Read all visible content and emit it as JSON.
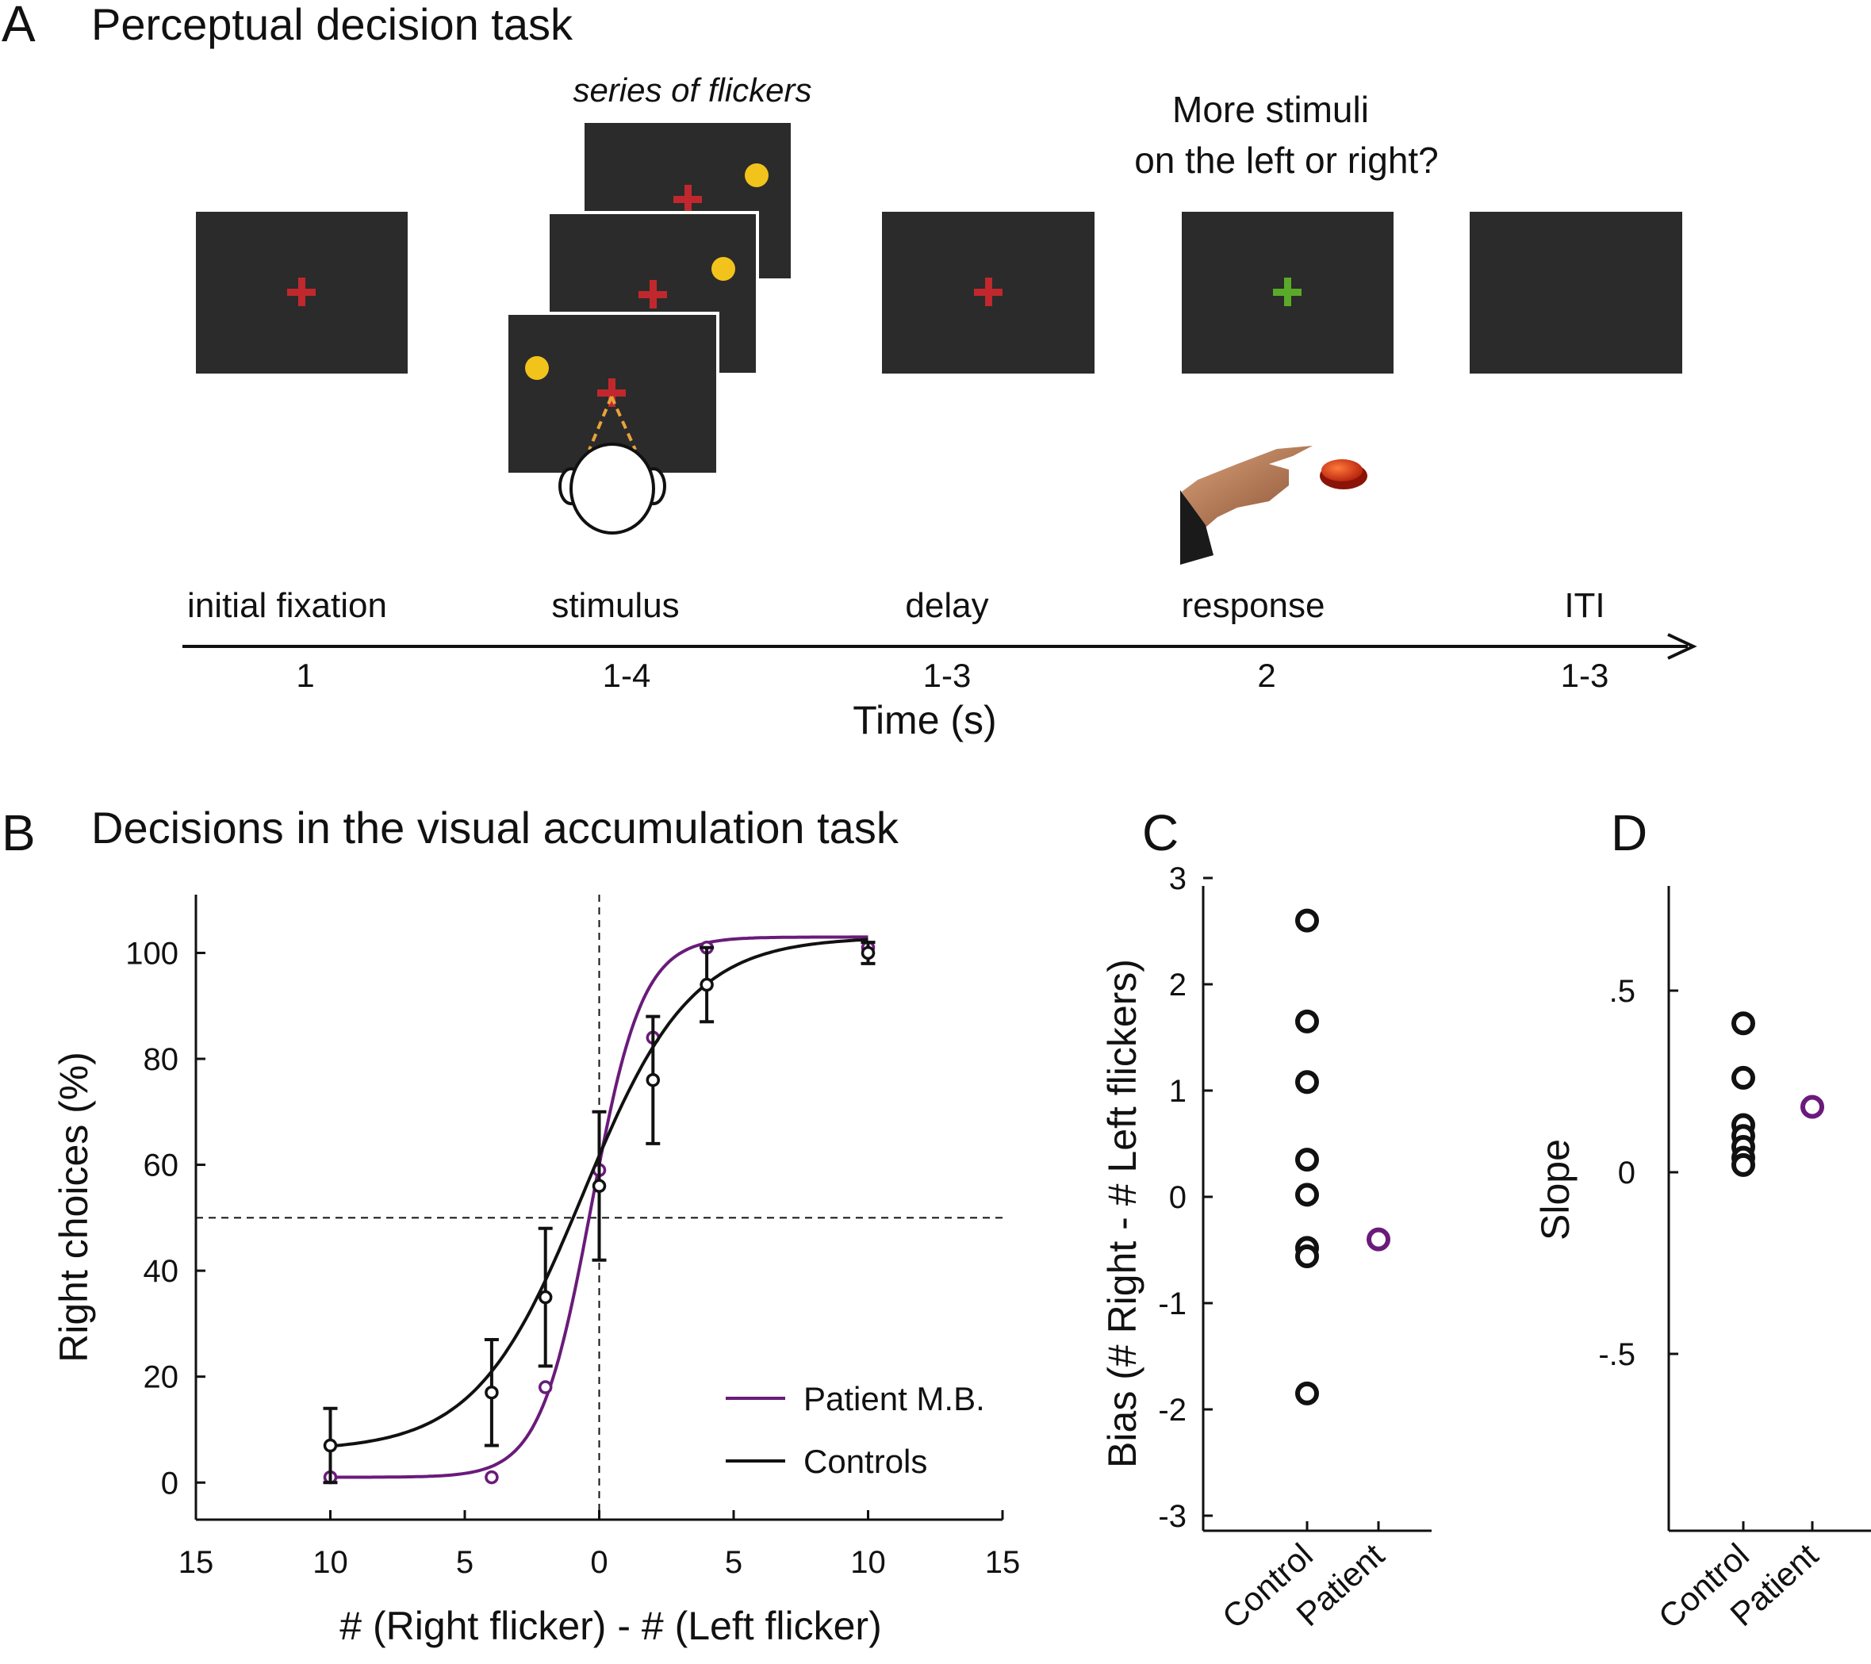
{
  "panel_a": {
    "letter": "A",
    "title": "Perceptual decision task",
    "flicker_caption": "series of flickers",
    "question_line1": "More stimuli",
    "question_line2": "on the left or right?",
    "phases": [
      {
        "label": "initial fixation",
        "duration": "1"
      },
      {
        "label": "stimulus",
        "duration": "1-4"
      },
      {
        "label": "delay",
        "duration": "1-3"
      },
      {
        "label": "response",
        "duration": "2"
      },
      {
        "label": "ITI",
        "duration": "1-3"
      }
    ],
    "axis_label": "Time (s)",
    "colors": {
      "screen": "#2b2b2b",
      "fixation_red": "#c0282d",
      "go_green": "#5aaa2a",
      "flicker_yellow": "#f2c31b",
      "gaze": "#e8a33a"
    }
  },
  "chart_data": [
    {
      "panel": "B",
      "type": "line",
      "title": "Decisions in the visual accumulation task",
      "xlabel": "# (Right flicker) - # (Left flicker)",
      "ylabel": "Right choices (%)",
      "xlim": [
        -15,
        15
      ],
      "ylim": [
        -7,
        111
      ],
      "x_ticks": [
        -15,
        -10,
        -5,
        0,
        5,
        10,
        15
      ],
      "x_tick_labels": [
        "15",
        "10",
        "5",
        "0",
        "5",
        "10",
        "15"
      ],
      "y_ticks": [
        0,
        20,
        40,
        60,
        80,
        100
      ],
      "y_tick_labels": [
        "0",
        "20",
        "40",
        "60",
        "80",
        "100"
      ],
      "reference_lines": {
        "x": 0,
        "y": 50
      },
      "legend_position": "bottom-right",
      "series": [
        {
          "name": "Patient M.B.",
          "color": "#6a1b7a",
          "points": [
            [
              -10,
              1
            ],
            [
              -4,
              1
            ],
            [
              -2,
              18
            ],
            [
              0,
              59
            ],
            [
              2,
              84
            ],
            [
              4,
              101
            ],
            [
              10,
              101
            ]
          ],
          "fit": {
            "lower": 1,
            "upper": 103,
            "midpoint": -0.3,
            "slope": 1.05
          }
        },
        {
          "name": "Controls",
          "color": "#111111",
          "points": [
            [
              -10,
              7
            ],
            [
              -4,
              17
            ],
            [
              -2,
              35
            ],
            [
              0,
              56
            ],
            [
              2,
              76
            ],
            [
              4,
              94
            ],
            [
              10,
              100
            ]
          ],
          "error": [
            7,
            10,
            13,
            14,
            12,
            7,
            2
          ],
          "fit": {
            "lower": 6,
            "upper": 103,
            "midpoint": -0.6,
            "slope": 0.5
          }
        }
      ]
    },
    {
      "panel": "C",
      "type": "scatter",
      "ylabel": "Bias (# Right - # Left flickers)",
      "ylim": [
        -3,
        3
      ],
      "y_ticks": [
        -3,
        -2,
        -1,
        0,
        1,
        2,
        3
      ],
      "y_tick_labels": [
        "-3",
        "-2",
        "-1",
        "0",
        "1",
        "2",
        "3"
      ],
      "categories": [
        "Control",
        "Patient"
      ],
      "series": [
        {
          "category": "Control",
          "color": "#111111",
          "values": [
            2.6,
            1.65,
            1.08,
            0.35,
            0.02,
            -0.48,
            -0.56,
            -1.85
          ]
        },
        {
          "category": "Patient",
          "color": "#6a1b7a",
          "values": [
            -0.4
          ]
        }
      ]
    },
    {
      "panel": "D",
      "type": "scatter",
      "ylabel": "Slope",
      "ylim": [
        -1,
        1
      ],
      "y_ticks": [
        0.5,
        0,
        -0.5
      ],
      "y_tick_labels": [
        ".5",
        "0",
        "-.5"
      ],
      "categories": [
        "Control",
        "Patient"
      ],
      "series": [
        {
          "category": "Control",
          "color": "#111111",
          "values": [
            0.41,
            0.26,
            0.13,
            0.1,
            0.07,
            0.04,
            0.02
          ]
        },
        {
          "category": "Patient",
          "color": "#6a1b7a",
          "values": [
            0.18
          ]
        }
      ]
    }
  ]
}
